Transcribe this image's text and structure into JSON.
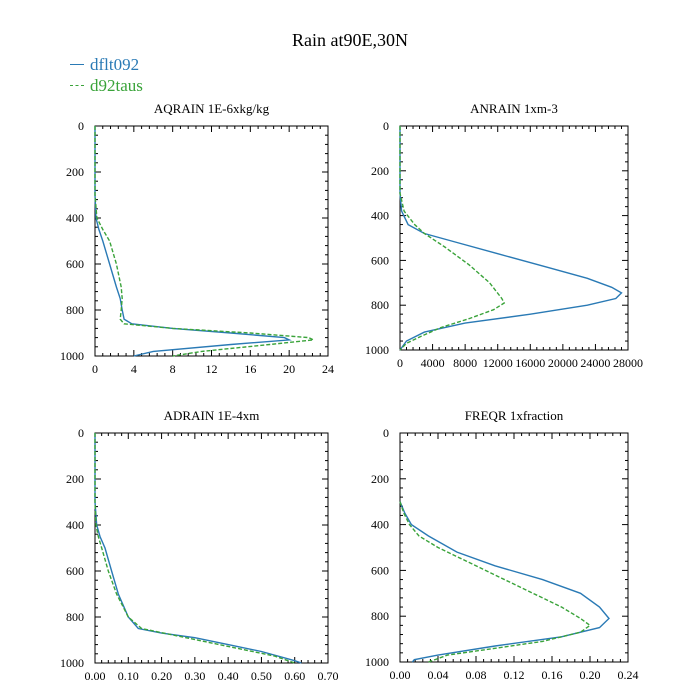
{
  "title": "Rain at90E,30N",
  "legend": [
    {
      "name": "dflt092",
      "color": "#2a7ab5",
      "dash": "solid"
    },
    {
      "name": "d92taus",
      "color": "#3aa33a",
      "dash": "dashed"
    }
  ],
  "chart_data": [
    {
      "type": "line",
      "title": "AQRAIN  1E-6xkg/kg",
      "xlim": [
        0,
        24
      ],
      "ylim": [
        0,
        1000
      ],
      "y_inverted": true,
      "xticks": [
        "0",
        "4",
        "8",
        "12",
        "16",
        "20",
        "24"
      ],
      "yticks": [
        "0",
        "200",
        "400",
        "600",
        "800",
        "1000"
      ],
      "series": [
        {
          "name": "dflt092",
          "points": [
            [
              0,
              0
            ],
            [
              0,
              300
            ],
            [
              0.1,
              400
            ],
            [
              0.4,
              450
            ],
            [
              0.8,
              500
            ],
            [
              1.5,
              600
            ],
            [
              2.2,
              700
            ],
            [
              2.6,
              750
            ],
            [
              2.8,
              800
            ],
            [
              3,
              840
            ],
            [
              3.8,
              860
            ],
            [
              8,
              880
            ],
            [
              14,
              900
            ],
            [
              19.5,
              920
            ],
            [
              20,
              930
            ],
            [
              14,
              950
            ],
            [
              6,
              980
            ],
            [
              4,
              1000
            ]
          ]
        },
        {
          "name": "d92taus",
          "points": [
            [
              0,
              0
            ],
            [
              0,
              300
            ],
            [
              0.2,
              400
            ],
            [
              0.8,
              450
            ],
            [
              1.5,
              500
            ],
            [
              2.2,
              600
            ],
            [
              2.7,
              700
            ],
            [
              2.8,
              750
            ],
            [
              2.7,
              800
            ],
            [
              2.6,
              840
            ],
            [
              3,
              860
            ],
            [
              8,
              880
            ],
            [
              16,
              900
            ],
            [
              22,
              920
            ],
            [
              22.5,
              930
            ],
            [
              18,
              950
            ],
            [
              11,
              980
            ],
            [
              8,
              1000
            ]
          ]
        }
      ]
    },
    {
      "type": "line",
      "title": "ANRAIN  1xm-3",
      "xlim": [
        0,
        28000
      ],
      "ylim": [
        0,
        1000
      ],
      "y_inverted": true,
      "xticks": [
        "0",
        "4000",
        "8000",
        "12000",
        "16000",
        "20000",
        "24000",
        "28000"
      ],
      "yticks": [
        "0",
        "200",
        "400",
        "600",
        "800",
        "1000"
      ],
      "series": [
        {
          "name": "dflt092",
          "points": [
            [
              0,
              0
            ],
            [
              0,
              300
            ],
            [
              200,
              380
            ],
            [
              1000,
              440
            ],
            [
              3000,
              480
            ],
            [
              7000,
              520
            ],
            [
              12000,
              570
            ],
            [
              18000,
              630
            ],
            [
              23000,
              680
            ],
            [
              26000,
              720
            ],
            [
              27200,
              745
            ],
            [
              26500,
              770
            ],
            [
              23000,
              800
            ],
            [
              16000,
              840
            ],
            [
              8000,
              880
            ],
            [
              3000,
              920
            ],
            [
              800,
              960
            ],
            [
              0,
              1000
            ]
          ]
        },
        {
          "name": "d92taus",
          "points": [
            [
              0,
              0
            ],
            [
              0,
              300
            ],
            [
              500,
              380
            ],
            [
              1800,
              440
            ],
            [
              3000,
              480
            ],
            [
              5500,
              540
            ],
            [
              8500,
              620
            ],
            [
              11000,
              700
            ],
            [
              12500,
              770
            ],
            [
              12800,
              790
            ],
            [
              11500,
              820
            ],
            [
              8500,
              860
            ],
            [
              5000,
              900
            ],
            [
              2500,
              940
            ],
            [
              800,
              970
            ],
            [
              0,
              1000
            ]
          ]
        }
      ]
    },
    {
      "type": "line",
      "title": "ADRAIN  1E-4xm",
      "xlim": [
        0,
        0.7
      ],
      "ylim": [
        0,
        1000
      ],
      "y_inverted": true,
      "xticks": [
        "0.00",
        "0.10",
        "0.20",
        "0.30",
        "0.40",
        "0.50",
        "0.60",
        "0.70"
      ],
      "yticks": [
        "0",
        "200",
        "400",
        "600",
        "800",
        "1000"
      ],
      "series": [
        {
          "name": "dflt092",
          "points": [
            [
              0,
              0
            ],
            [
              0,
              300
            ],
            [
              0.005,
              400
            ],
            [
              0.015,
              450
            ],
            [
              0.03,
              500
            ],
            [
              0.05,
              600
            ],
            [
              0.07,
              700
            ],
            [
              0.1,
              800
            ],
            [
              0.13,
              850
            ],
            [
              0.2,
              870
            ],
            [
              0.3,
              890
            ],
            [
              0.4,
              920
            ],
            [
              0.5,
              950
            ],
            [
              0.6,
              990
            ],
            [
              0.62,
              1000
            ]
          ]
        },
        {
          "name": "d92taus",
          "points": [
            [
              0,
              0
            ],
            [
              0,
              300
            ],
            [
              0.003,
              400
            ],
            [
              0.01,
              450
            ],
            [
              0.02,
              500
            ],
            [
              0.04,
              600
            ],
            [
              0.065,
              700
            ],
            [
              0.1,
              800
            ],
            [
              0.14,
              850
            ],
            [
              0.24,
              880
            ],
            [
              0.34,
              910
            ],
            [
              0.44,
              940
            ],
            [
              0.54,
              970
            ],
            [
              0.6,
              1000
            ]
          ]
        }
      ]
    },
    {
      "type": "line",
      "title": "FREQR  1xfraction",
      "xlim": [
        0,
        0.24
      ],
      "ylim": [
        0,
        1000
      ],
      "y_inverted": true,
      "xticks": [
        "0.00",
        "0.04",
        "0.08",
        "0.12",
        "0.16",
        "0.20",
        "0.24"
      ],
      "yticks": [
        "0",
        "200",
        "400",
        "600",
        "800",
        "1000"
      ],
      "series": [
        {
          "name": "dflt092",
          "points": [
            [
              0,
              300
            ],
            [
              0.005,
              350
            ],
            [
              0.012,
              400
            ],
            [
              0.03,
              450
            ],
            [
              0.06,
              520
            ],
            [
              0.1,
              580
            ],
            [
              0.15,
              640
            ],
            [
              0.19,
              700
            ],
            [
              0.21,
              760
            ],
            [
              0.22,
              810
            ],
            [
              0.21,
              850
            ],
            [
              0.17,
              890
            ],
            [
              0.1,
              930
            ],
            [
              0.04,
              970
            ],
            [
              0.015,
              990
            ],
            [
              0.013,
              1000
            ]
          ]
        },
        {
          "name": "d92taus",
          "points": [
            [
              0,
              300
            ],
            [
              0.004,
              350
            ],
            [
              0.01,
              400
            ],
            [
              0.02,
              450
            ],
            [
              0.04,
              500
            ],
            [
              0.07,
              560
            ],
            [
              0.1,
              620
            ],
            [
              0.14,
              700
            ],
            [
              0.17,
              760
            ],
            [
              0.19,
              810
            ],
            [
              0.2,
              840
            ],
            [
              0.19,
              870
            ],
            [
              0.15,
              910
            ],
            [
              0.1,
              940
            ],
            [
              0.05,
              970
            ],
            [
              0.03,
              1000
            ]
          ]
        }
      ]
    }
  ]
}
